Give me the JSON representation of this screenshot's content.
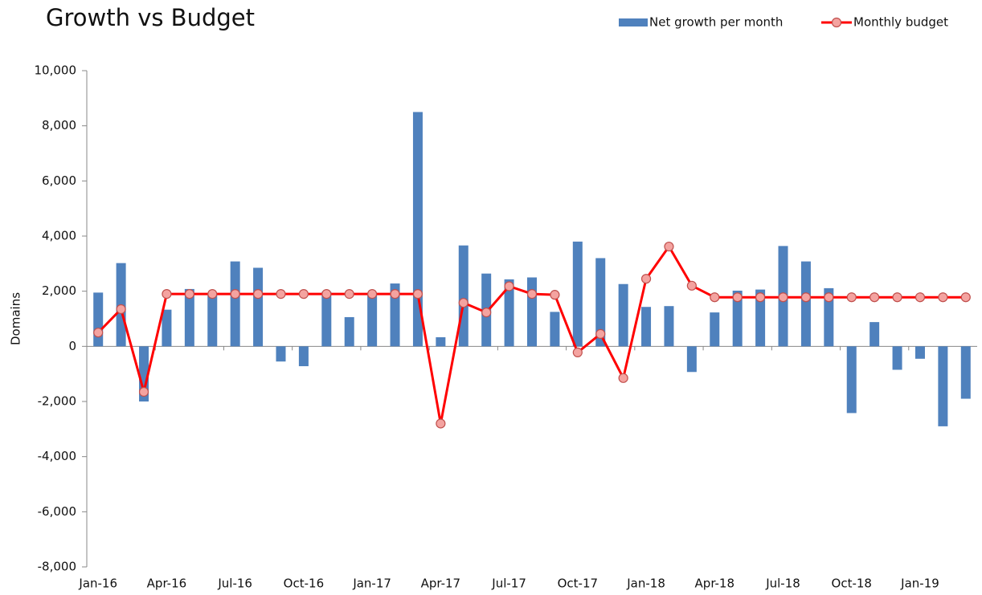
{
  "chart_data": {
    "type": "combo",
    "title": "Growth vs Budget",
    "y_label": "Domains",
    "categories": [
      "Jan-16",
      null,
      null,
      "Apr-16",
      null,
      null,
      "Jul-16",
      null,
      null,
      "Oct-16",
      null,
      null,
      "Jan-17",
      null,
      null,
      "Apr-17",
      null,
      null,
      "Jul-17",
      null,
      null,
      "Oct-17",
      null,
      null,
      "Jan-18",
      null,
      null,
      "Apr-18",
      null,
      null,
      "Jul-18",
      null,
      null,
      "Oct-18",
      null,
      null,
      "Jan-19",
      null,
      null
    ],
    "series": [
      {
        "name": "Net growth per month",
        "type": "bar",
        "color": "#4f81bd",
        "values": [
          1950,
          3020,
          -2000,
          1330,
          2080,
          1900,
          3080,
          2850,
          -550,
          -720,
          1980,
          1060,
          1950,
          2280,
          8500,
          330,
          3660,
          2640,
          2430,
          2500,
          1250,
          3800,
          3200,
          2260,
          1430,
          1460,
          -930,
          1230,
          2020,
          2060,
          3640,
          3080,
          2110,
          -2420,
          880,
          -850,
          -450,
          -2900,
          -1900
        ]
      },
      {
        "name": "Monthly budget",
        "type": "line",
        "color": "#ff0000",
        "values": [
          500,
          1350,
          -1650,
          1900,
          1900,
          1900,
          1900,
          1900,
          1900,
          1900,
          1900,
          1900,
          1900,
          1900,
          1900,
          -2800,
          1580,
          1230,
          2180,
          1900,
          1870,
          -220,
          450,
          -1150,
          2450,
          3620,
          2200,
          1780,
          1780,
          1780,
          1780,
          1780,
          1780,
          1780,
          1780,
          1780,
          1780,
          1780,
          1780
        ]
      }
    ],
    "ylim": [
      -8000,
      10000
    ],
    "yticks": [
      {
        "value": -8000,
        "label": "-8,000"
      },
      {
        "value": -6000,
        "label": "-6,000"
      },
      {
        "value": -4000,
        "label": "-4,000"
      },
      {
        "value": -2000,
        "label": "-2,000"
      },
      0,
      {
        "value": 2000,
        "label": "2,000"
      },
      {
        "value": 4000,
        "label": "4,000"
      },
      {
        "value": 6000,
        "label": "6,000"
      },
      {
        "value": 8000,
        "label": "8,000"
      },
      {
        "value": 10000,
        "label": "10,000"
      }
    ],
    "legend": "top-right",
    "grid": false
  }
}
